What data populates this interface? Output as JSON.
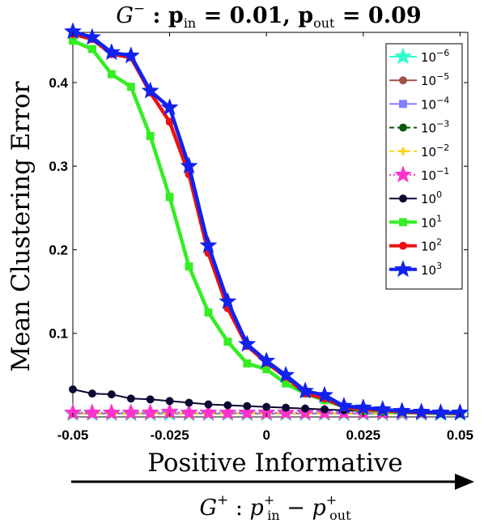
{
  "chart_data": {
    "type": "line",
    "title": {
      "g": "G",
      "g_sup": "−",
      "colon": " : ",
      "p1": "p",
      "p1_sub": "in",
      "eq1": " = 0.01,  ",
      "p2": "p",
      "p2_sub": "out",
      "eq2": " = 0.09"
    },
    "ylabel": "Mean Clustering Error",
    "xlabel": "Positive Informative",
    "subxlabel": {
      "g": "G",
      "g_sup": "+",
      "colon": " : ",
      "p1": "p",
      "p1_sup": "+",
      "p1_sub": "in",
      "minus": " − ",
      "p2": "p",
      "p2_sup": "+",
      "p2_sub": "out"
    },
    "xlim": [
      -0.05,
      0.052
    ],
    "ylim": [
      0.0,
      0.46
    ],
    "x_ticks": [
      -0.05,
      -0.025,
      0,
      0.025,
      0.05
    ],
    "x_tick_labels": [
      "-0.05",
      "-0.025",
      "0",
      "0.025",
      "0.05"
    ],
    "y_ticks": [
      0.1,
      0.2,
      0.3,
      0.4
    ],
    "y_tick_labels": [
      "0.1",
      "0.2",
      "0.3",
      "0.4"
    ],
    "grid": false,
    "legend_position": "top-right",
    "x": [
      -0.05,
      -0.045,
      -0.04,
      -0.035,
      -0.03,
      -0.025,
      -0.02,
      -0.015,
      -0.01,
      -0.005,
      0,
      0.005,
      0.01,
      0.015,
      0.02,
      0.025,
      0.03,
      0.035,
      0.04,
      0.045,
      0.05
    ],
    "series": [
      {
        "name": "10",
        "exp": "−6",
        "color": "#33ffcc",
        "marker": "star",
        "line": "solid",
        "values": [
          0.004,
          0.004,
          0.004,
          0.004,
          0.004,
          0.004,
          0.004,
          0.004,
          0.004,
          0.004,
          0.004,
          0.004,
          0.004,
          0.004,
          0.004,
          0.004,
          0.004,
          0.004,
          0.004,
          0.004,
          0.004
        ]
      },
      {
        "name": "10",
        "exp": "−5",
        "color": "#a0524a",
        "marker": "circle",
        "line": "solid",
        "values": [
          0.004,
          0.004,
          0.004,
          0.004,
          0.004,
          0.004,
          0.004,
          0.004,
          0.004,
          0.004,
          0.004,
          0.004,
          0.004,
          0.004,
          0.004,
          0.004,
          0.004,
          0.004,
          0.004,
          0.004,
          0.004
        ]
      },
      {
        "name": "10",
        "exp": "−4",
        "color": "#8080ff",
        "marker": "square",
        "line": "solid",
        "values": [
          0.004,
          0.004,
          0.004,
          0.004,
          0.004,
          0.004,
          0.004,
          0.004,
          0.004,
          0.004,
          0.004,
          0.004,
          0.004,
          0.004,
          0.004,
          0.004,
          0.004,
          0.004,
          0.004,
          0.004,
          0.004
        ]
      },
      {
        "name": "10",
        "exp": "−3",
        "color": "#0a5a0a",
        "marker": "circle",
        "line": "dashed",
        "values": [
          0.004,
          0.004,
          0.004,
          0.004,
          0.004,
          0.004,
          0.004,
          0.004,
          0.004,
          0.004,
          0.004,
          0.004,
          0.004,
          0.004,
          0.004,
          0.004,
          0.004,
          0.004,
          0.004,
          0.004,
          0.004
        ]
      },
      {
        "name": "10",
        "exp": "−2",
        "color": "#ffd21a",
        "marker": "plus",
        "line": "dashed",
        "values": [
          0.004,
          0.004,
          0.004,
          0.004,
          0.004,
          0.004,
          0.004,
          0.004,
          0.004,
          0.004,
          0.004,
          0.004,
          0.004,
          0.004,
          0.004,
          0.004,
          0.004,
          0.004,
          0.004,
          0.004,
          0.004
        ]
      },
      {
        "name": "10",
        "exp": "−1",
        "color": "#ff33cc",
        "marker": "star",
        "line": "dotted",
        "values": [
          0.005,
          0.005,
          0.005,
          0.005,
          0.005,
          0.006,
          0.005,
          0.005,
          0.005,
          0.005,
          0.005,
          0.005,
          0.005,
          0.005,
          0.005,
          0.005,
          0.005,
          0.005,
          0.005,
          0.005,
          0.005
        ]
      },
      {
        "name": "10",
        "exp": "0",
        "color": "#0a0a33",
        "marker": "circle",
        "line": "solid",
        "values": [
          0.033,
          0.028,
          0.027,
          0.022,
          0.021,
          0.019,
          0.017,
          0.015,
          0.014,
          0.013,
          0.012,
          0.011,
          0.01,
          0.009,
          0.008,
          0.007,
          0.006,
          0.006,
          0.005,
          0.005,
          0.005
        ]
      },
      {
        "name": "10",
        "exp": "1",
        "color": "#33ee22",
        "marker": "square",
        "line": "solid",
        "values": [
          0.45,
          0.44,
          0.41,
          0.395,
          0.336,
          0.263,
          0.18,
          0.125,
          0.09,
          0.064,
          0.057,
          0.04,
          0.028,
          0.02,
          0.012,
          0.008,
          0.007,
          0.005,
          0.005,
          0.004,
          0.004
        ]
      },
      {
        "name": "10",
        "exp": "2",
        "color": "#ee1111",
        "marker": "circle",
        "line": "solid",
        "values": [
          0.458,
          0.452,
          0.434,
          0.43,
          0.388,
          0.353,
          0.29,
          0.196,
          0.13,
          0.085,
          0.065,
          0.048,
          0.028,
          0.022,
          0.012,
          0.009,
          0.008,
          0.006,
          0.005,
          0.005,
          0.004
        ]
      },
      {
        "name": "10",
        "exp": "3",
        "color": "#1122ee",
        "marker": "star",
        "line": "solid",
        "values": [
          0.461,
          0.454,
          0.436,
          0.432,
          0.39,
          0.37,
          0.3,
          0.205,
          0.138,
          0.087,
          0.067,
          0.05,
          0.031,
          0.026,
          0.013,
          0.011,
          0.009,
          0.007,
          0.006,
          0.005,
          0.005
        ]
      }
    ]
  }
}
